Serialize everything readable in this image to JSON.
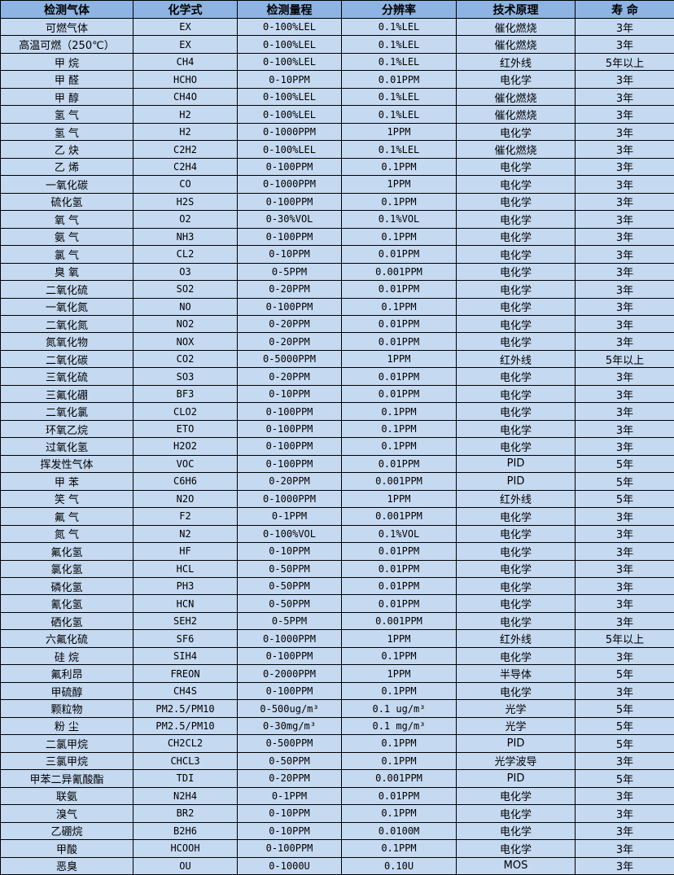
{
  "colors": {
    "header_bg": "#8db4e2",
    "row_bg": "#c5d9f1",
    "border": "#000000"
  },
  "headers": [
    "检测气体",
    "化学式",
    "检测量程",
    "分辨率",
    "技术原理",
    "寿 命"
  ],
  "rows": [
    [
      "可燃气体",
      "EX",
      "0-100%LEL",
      "0.1%LEL",
      "催化燃烧",
      "3年"
    ],
    [
      "高温可燃（250℃）",
      "EX",
      "0-100%LEL",
      "0.1%LEL",
      "催化燃烧",
      "3年"
    ],
    [
      "甲 烷",
      "CH4",
      "0-100%LEL",
      "0.1%LEL",
      "红外线",
      "5年以上"
    ],
    [
      "甲 醛",
      "HCHO",
      "0-10PPM",
      "0.01PPM",
      "电化学",
      "3年"
    ],
    [
      "甲 醇",
      "CH4O",
      "0-100%LEL",
      "0.1%LEL",
      "催化燃烧",
      "3年"
    ],
    [
      "氢 气",
      "H2",
      "0-100%LEL",
      "0.1%LEL",
      "催化燃烧",
      "3年"
    ],
    [
      "氢 气",
      "H2",
      "0-1000PPM",
      "1PPM",
      "电化学",
      "3年"
    ],
    [
      "乙 炔",
      "C2H2",
      "0-100%LEL",
      "0.1%LEL",
      "催化燃烧",
      "3年"
    ],
    [
      "乙 烯",
      "C2H4",
      "0-100PPM",
      "0.1PPM",
      "电化学",
      "3年"
    ],
    [
      "一氧化碳",
      "CO",
      "0-1000PPM",
      "1PPM",
      "电化学",
      "3年"
    ],
    [
      "硫化氢",
      "H2S",
      "0-100PPM",
      "0.1PPM",
      "电化学",
      "3年"
    ],
    [
      "氧 气",
      "O2",
      "0-30%VOL",
      "0.1%VOL",
      "电化学",
      "3年"
    ],
    [
      "氨 气",
      "NH3",
      "0-100PPM",
      "0.1PPM",
      "电化学",
      "3年"
    ],
    [
      "氯 气",
      "CL2",
      "0-10PPM",
      "0.01PPM",
      "电化学",
      "3年"
    ],
    [
      "臭 氧",
      "O3",
      "0-5PPM",
      "0.001PPM",
      "电化学",
      "3年"
    ],
    [
      "二氧化硫",
      "SO2",
      "0-20PPM",
      "0.01PPM",
      "电化学",
      "3年"
    ],
    [
      "一氧化氮",
      "NO",
      "0-100PPM",
      "0.1PPM",
      "电化学",
      "3年"
    ],
    [
      "二氧化氮",
      "NO2",
      "0-20PPM",
      "0.01PPM",
      "电化学",
      "3年"
    ],
    [
      "氮氧化物",
      "NOX",
      "0-20PPM",
      "0.01PPM",
      "电化学",
      "3年"
    ],
    [
      "二氧化碳",
      "CO2",
      "0-5000PPM",
      "1PPM",
      "红外线",
      "5年以上"
    ],
    [
      "三氧化硫",
      "SO3",
      "0-20PPM",
      "0.01PPM",
      "电化学",
      "3年"
    ],
    [
      "三氟化硼",
      "BF3",
      "0-10PPM",
      "0.01PPM",
      "电化学",
      "3年"
    ],
    [
      "二氧化氯",
      "CLO2",
      "0-100PPM",
      "0.1PPM",
      "电化学",
      "3年"
    ],
    [
      "环氧乙烷",
      "ETO",
      "0-100PPM",
      "0.1PPM",
      "电化学",
      "3年"
    ],
    [
      "过氧化氢",
      "H2O2",
      "0-100PPM",
      "0.1PPM",
      "电化学",
      "3年"
    ],
    [
      "挥发性气体",
      "VOC",
      "0-100PPM",
      "0.01PPM",
      "PID",
      "5年"
    ],
    [
      "甲 苯",
      "C6H6",
      "0-20PPM",
      "0.001PPM",
      "PID",
      "5年"
    ],
    [
      "笑 气",
      "N2O",
      "0-1000PPM",
      "1PPM",
      "红外线",
      "5年"
    ],
    [
      "氟 气",
      "F2",
      "0-1PPM",
      "0.001PPM",
      "电化学",
      "3年"
    ],
    [
      "氮 气",
      "N2",
      "0-100%VOL",
      "0.1%VOL",
      "电化学",
      "3年"
    ],
    [
      "氟化氢",
      "HF",
      "0-10PPM",
      "0.01PPM",
      "电化学",
      "3年"
    ],
    [
      "氯化氢",
      "HCL",
      "0-50PPM",
      "0.01PPM",
      "电化学",
      "3年"
    ],
    [
      "磷化氢",
      "PH3",
      "0-50PPM",
      "0.01PPM",
      "电化学",
      "3年"
    ],
    [
      "氰化氢",
      "HCN",
      "0-50PPM",
      "0.01PPM",
      "电化学",
      "3年"
    ],
    [
      "硒化氢",
      "SEH2",
      "0-5PPM",
      "0.001PPM",
      "电化学",
      "3年"
    ],
    [
      "六氟化硫",
      "SF6",
      "0-1000PPM",
      "1PPM",
      "红外线",
      "5年以上"
    ],
    [
      "硅 烷",
      "SIH4",
      "0-100PPM",
      "0.1PPM",
      "电化学",
      "3年"
    ],
    [
      "氟利昂",
      "FREON",
      "0-2000PPM",
      "1PPM",
      "半导体",
      "5年"
    ],
    [
      "甲硫醇",
      "CH4S",
      "0-100PPM",
      "0.1PPM",
      "电化学",
      "3年"
    ],
    [
      "颗粒物",
      "PM2.5/PM10",
      "0-500ug/m³",
      "0.1 ug/m³",
      "光学",
      "5年"
    ],
    [
      "粉 尘",
      "PM2.5/PM10",
      "0-30mg/m³",
      "0.1 mg/m³",
      "光学",
      "5年"
    ],
    [
      "二氯甲烷",
      "CH2CL2",
      "0-500PPM",
      "0.1PPM",
      "PID",
      "5年"
    ],
    [
      "三氯甲烷",
      "CHCL3",
      "0-50PPM",
      "0.1PPM",
      "光学波导",
      "3年"
    ],
    [
      "甲苯二异氰酸酯",
      "TDI",
      "0-20PPM",
      "0.001PPM",
      "PID",
      "5年"
    ],
    [
      "联氨",
      "N2H4",
      "0-1PPM",
      "0.01PPM",
      "电化学",
      "3年"
    ],
    [
      "溴气",
      "BR2",
      "0-10PPM",
      "0.1PPM",
      "电化学",
      "3年"
    ],
    [
      "乙硼烷",
      "B2H6",
      "0-10PPM",
      "0.0100M",
      "电化学",
      "3年"
    ],
    [
      "甲酸",
      "HCOOH",
      "0-100PPM",
      "0.1PPM",
      "电化学",
      "3年"
    ],
    [
      "恶臭",
      "OU",
      "0-1000U",
      "0.10U",
      "MOS",
      "3年"
    ]
  ]
}
